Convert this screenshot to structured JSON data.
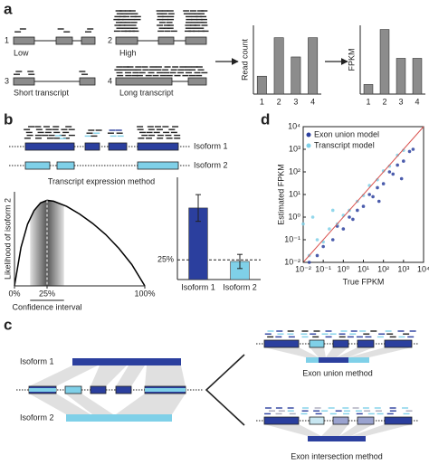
{
  "panels": {
    "a": {
      "letter": "a",
      "cases": [
        {
          "number": "1",
          "label": "Low"
        },
        {
          "number": "2",
          "label": "High"
        },
        {
          "number": "3",
          "label": "Short transcript"
        },
        {
          "number": "4",
          "label": "Long transcript"
        }
      ]
    },
    "b": {
      "letter": "b",
      "isoforms": [
        "Isoform 1",
        "Isoform 2"
      ],
      "method": "Transcript expression method"
    },
    "c": {
      "letter": "c",
      "isoforms": [
        "Isoform 1",
        "Isoform 2"
      ],
      "methods": [
        "Exon union method",
        "Exon intersection method"
      ]
    },
    "d": {
      "letter": "d"
    }
  },
  "chart_data": [
    {
      "type": "bar",
      "ylabel": "Read count",
      "categories": [
        "1",
        "2",
        "3",
        "4"
      ],
      "values": [
        1.3,
        4.1,
        2.7,
        4.1
      ],
      "color": "#8c8c8c",
      "ylim": [
        0,
        5
      ]
    },
    {
      "type": "bar",
      "ylabel": "FPKM",
      "categories": [
        "1",
        "2",
        "3",
        "4"
      ],
      "values": [
        0.7,
        4.7,
        2.6,
        2.6
      ],
      "color": "#8c8c8c",
      "ylim": [
        0,
        5
      ]
    },
    {
      "type": "line",
      "ylabel": "Likelihood of isoform 2",
      "xlabel": "Confidence interval",
      "x": [
        0,
        5,
        10,
        15,
        20,
        25,
        30,
        40,
        50,
        60,
        70,
        80,
        90,
        100
      ],
      "values": [
        0,
        45,
        72,
        88,
        97,
        100,
        99,
        93,
        84,
        73,
        60,
        44,
        25,
        0
      ],
      "xlim": [
        0,
        100
      ],
      "ylim": [
        0,
        110
      ],
      "xticks": [
        {
          "value": 0,
          "label": "0%"
        },
        {
          "value": 25,
          "label": "25%"
        },
        {
          "value": 100,
          "label": "100%"
        }
      ],
      "ci": [
        12,
        38
      ],
      "color": "#000000"
    },
    {
      "type": "bar",
      "categories": [
        "Isoform 1",
        "Isoform 2"
      ],
      "values": [
        91,
        23
      ],
      "errors": [
        17,
        9
      ],
      "colors": [
        "#2b3f9e",
        "#7fd0e8"
      ],
      "ylim": [
        0,
        130
      ],
      "yticks": [
        {
          "value": 25,
          "label": "25%"
        }
      ]
    },
    {
      "type": "scatter",
      "xlabel": "True FPKM",
      "ylabel": "Estimated FPKM",
      "log": true,
      "legend": "upper left",
      "xlim": [
        0.01,
        10000
      ],
      "ylim": [
        0.01,
        10000
      ],
      "xticks": [
        {
          "value": 0.01,
          "label": "10⁻²"
        },
        {
          "value": 0.1,
          "label": "10⁻¹"
        },
        {
          "value": 1,
          "label": "10⁰"
        },
        {
          "value": 10,
          "label": "10¹"
        },
        {
          "value": 100,
          "label": "10²"
        },
        {
          "value": 1000,
          "label": "10³"
        },
        {
          "value": 10000,
          "label": "10⁴"
        }
      ],
      "yticks": [
        {
          "value": 0.01,
          "label": "10⁻²"
        },
        {
          "value": 0.1,
          "label": "10⁻¹"
        },
        {
          "value": 1,
          "label": "10⁰"
        },
        {
          "value": 10,
          "label": "10¹"
        },
        {
          "value": 100,
          "label": "10²"
        },
        {
          "value": 1000,
          "label": "10³"
        },
        {
          "value": 10000,
          "label": "10⁴"
        }
      ],
      "series": [
        {
          "name": "Exon union model",
          "color": "#2b3f9e",
          "x": [
            0.02,
            0.05,
            0.1,
            0.3,
            0.5,
            1,
            2,
            3,
            5,
            10,
            20,
            30,
            50,
            100,
            200,
            300,
            500,
            1000,
            2000,
            3000,
            800,
            60
          ],
          "values": [
            0.01,
            0.02,
            0.05,
            0.1,
            0.4,
            0.3,
            1,
            0.8,
            2,
            3,
            10,
            8,
            20,
            30,
            100,
            80,
            200,
            300,
            800,
            1000,
            50,
            5
          ]
        },
        {
          "name": "Transcript model",
          "color": "#7fd0e8",
          "x": [
            0.01,
            0.02,
            0.05,
            0.1,
            0.2,
            0.5,
            1,
            2,
            5,
            10,
            20,
            50,
            100,
            200,
            500,
            1000,
            0.03,
            0.3
          ],
          "values": [
            0.5,
            0.02,
            0.1,
            0.08,
            0.3,
            0.5,
            1.2,
            2,
            5,
            9,
            25,
            45,
            110,
            180,
            550,
            900,
            1,
            2
          ]
        }
      ]
    }
  ]
}
